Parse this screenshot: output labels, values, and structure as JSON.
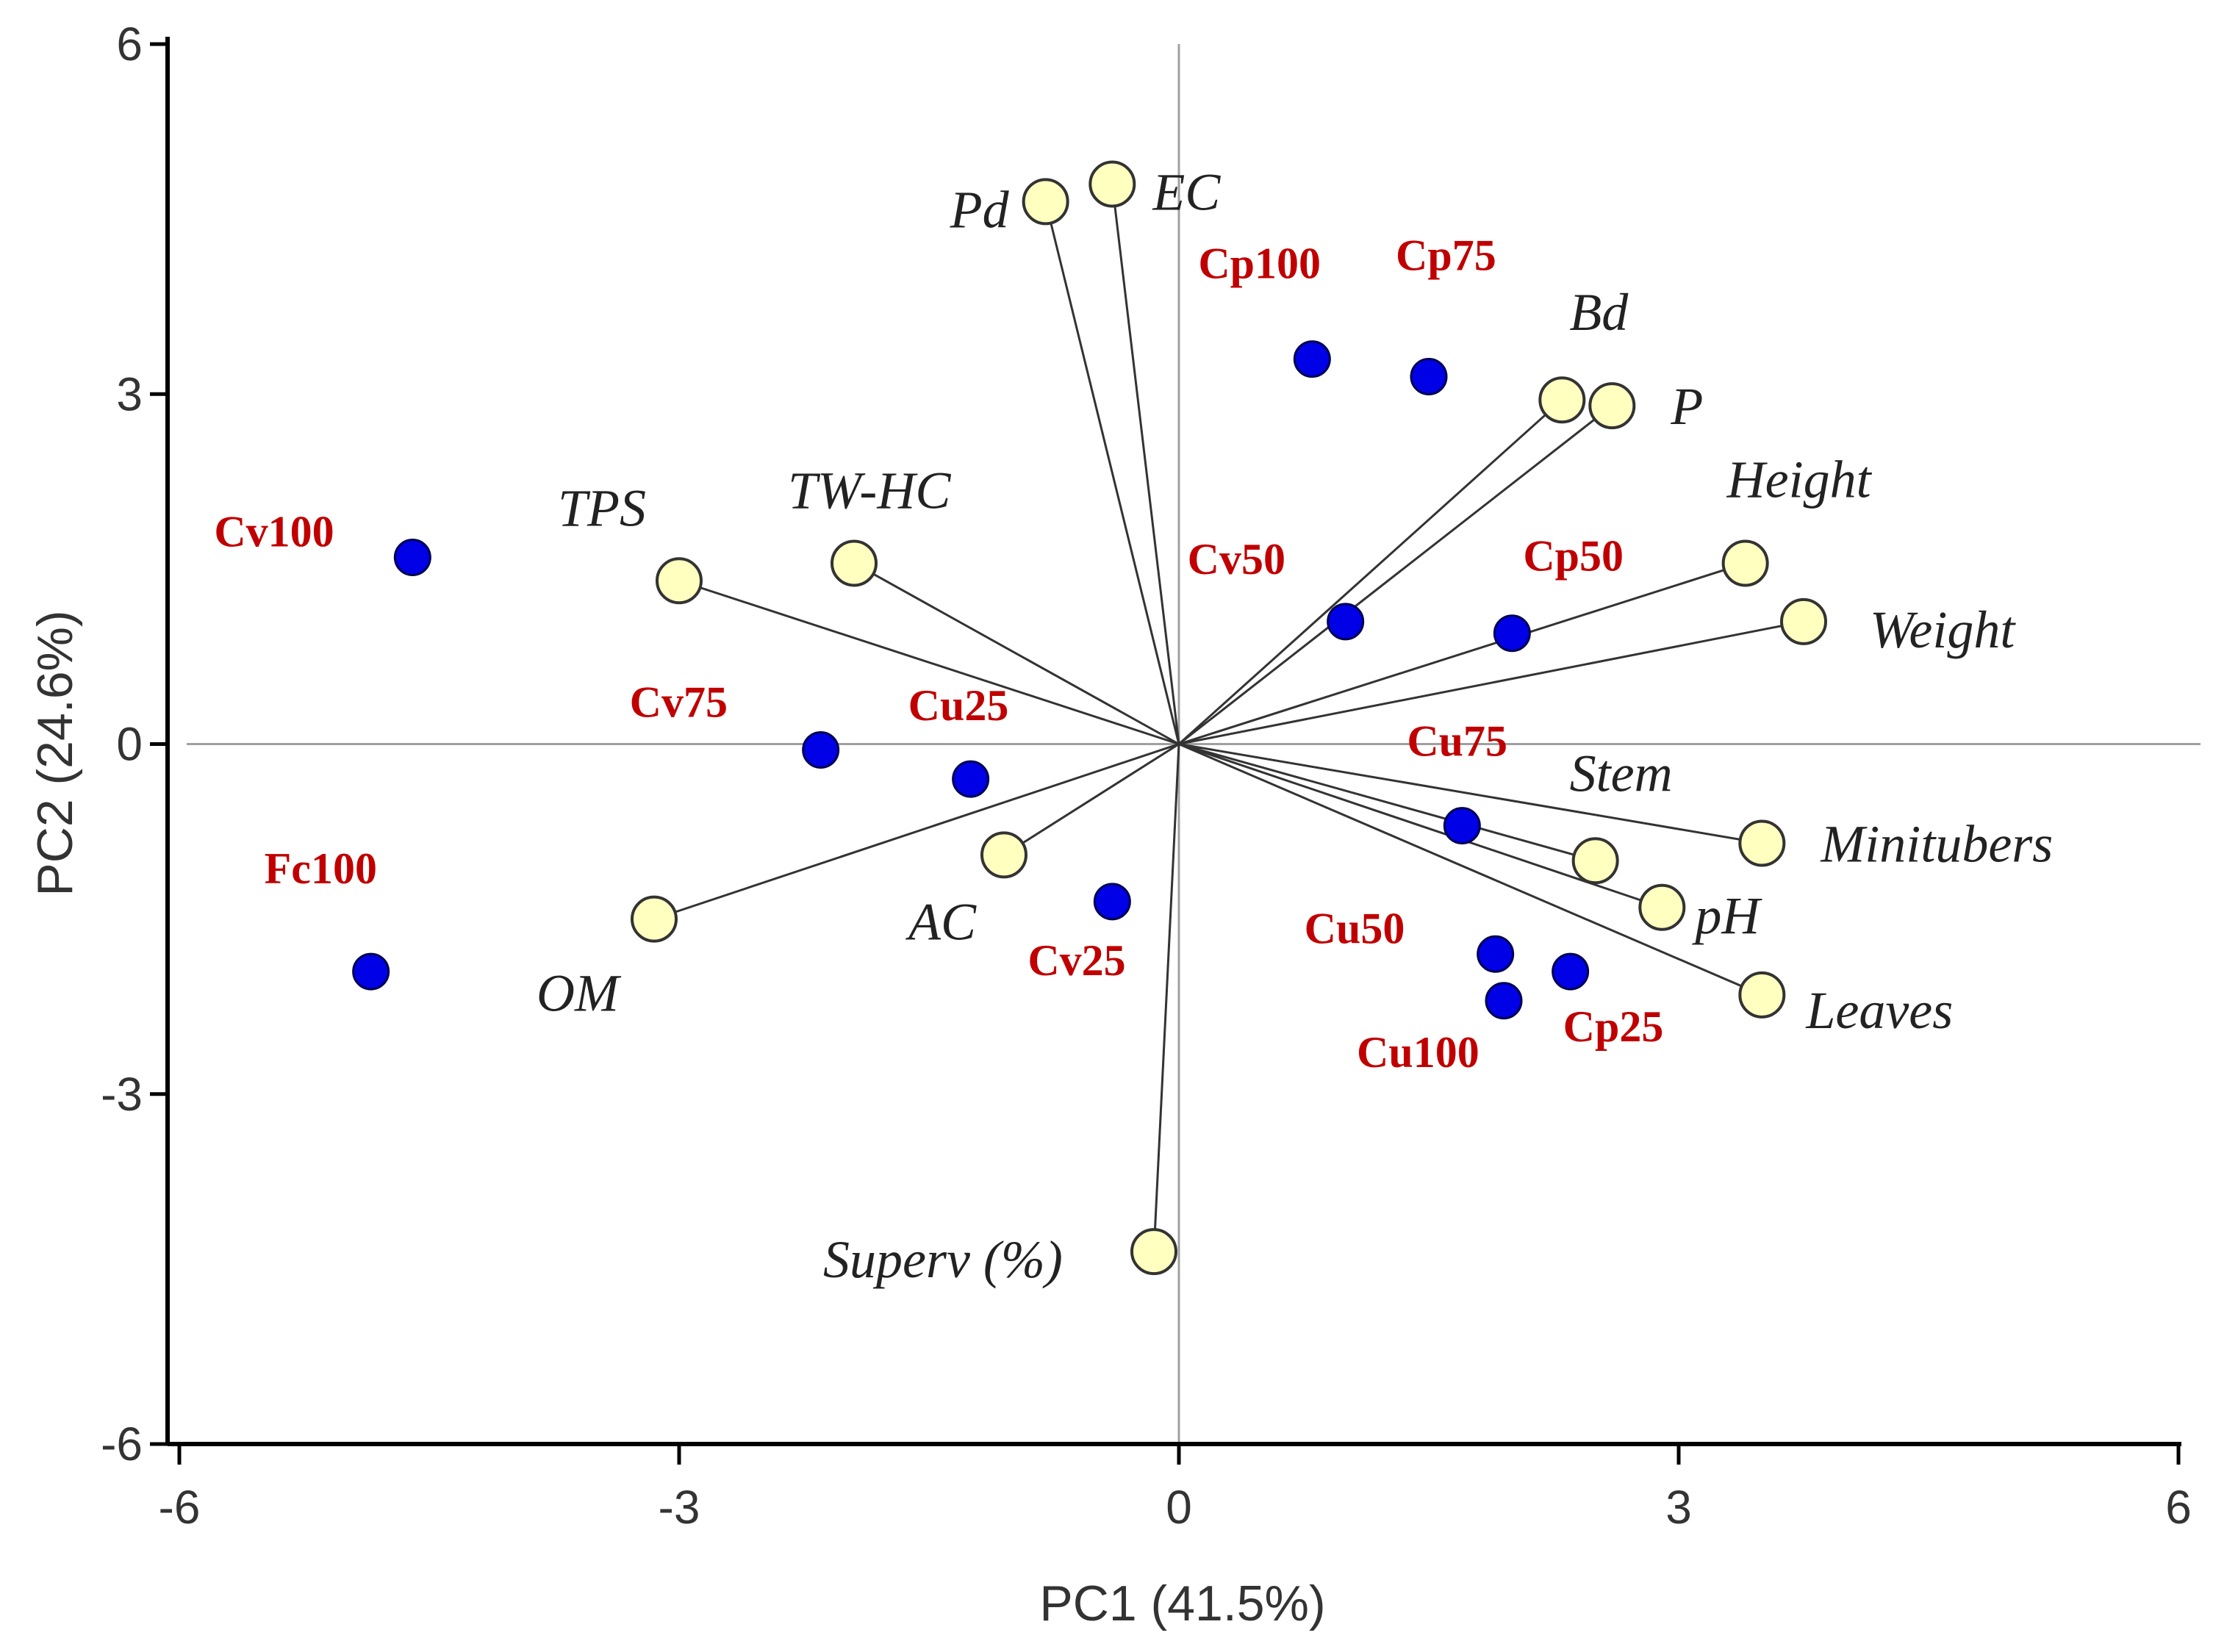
{
  "chart_data": {
    "type": "scatter",
    "subtype": "biplot",
    "title": "",
    "xlabel": "PC1 (41.5%)",
    "ylabel": "PC2 (24.6%)",
    "xlim": [
      -6,
      6
    ],
    "ylim": [
      -6,
      6
    ],
    "xticks": [
      -6,
      -3,
      0,
      3,
      6
    ],
    "yticks": [
      -6,
      -3,
      0,
      3,
      6
    ],
    "xtick_labels": [
      "-6",
      "-3",
      "0",
      "3",
      "6"
    ],
    "ytick_labels": [
      "-6",
      "-3",
      "0",
      "3",
      "6"
    ],
    "colors": {
      "treatment_fill": "#0000e6",
      "variable_fill": "#ffffc0",
      "vector_line": "#333333",
      "treatment_label": "#c00000",
      "axis": "#000000",
      "origin_lines": "#a0a0a0"
    },
    "variables": [
      {
        "name": "Pd",
        "x": -0.8,
        "y": 4.65
      },
      {
        "name": "EC",
        "x": -0.4,
        "y": 4.8
      },
      {
        "name": "Bd",
        "x": 2.3,
        "y": 2.95
      },
      {
        "name": "P",
        "x": 2.6,
        "y": 2.9
      },
      {
        "name": "Height",
        "x": 3.4,
        "y": 1.55
      },
      {
        "name": "Weight",
        "x": 3.75,
        "y": 1.05
      },
      {
        "name": "TPS",
        "x": -3.0,
        "y": 1.4
      },
      {
        "name": "TW-HC",
        "x": -1.95,
        "y": 1.55
      },
      {
        "name": "Stem",
        "x": 2.5,
        "y": -1.0
      },
      {
        "name": "Minitubers",
        "x": 3.5,
        "y": -0.85
      },
      {
        "name": "pH",
        "x": 2.9,
        "y": -1.4
      },
      {
        "name": "Leaves",
        "x": 3.5,
        "y": -2.15
      },
      {
        "name": "AC",
        "x": -1.05,
        "y": -0.95
      },
      {
        "name": "OM",
        "x": -3.15,
        "y": -1.5
      },
      {
        "name": "Superv (%)",
        "x": -0.15,
        "y": -4.35
      }
    ],
    "treatments": [
      {
        "name": "Cp100",
        "x": 0.8,
        "y": 3.3
      },
      {
        "name": "Cp75",
        "x": 1.5,
        "y": 3.15
      },
      {
        "name": "Cv50",
        "x": 1.0,
        "y": 1.05
      },
      {
        "name": "Cp50",
        "x": 2.0,
        "y": 0.95
      },
      {
        "name": "Cv100",
        "x": -4.6,
        "y": 1.6
      },
      {
        "name": "Cv75",
        "x": -2.15,
        "y": -0.05
      },
      {
        "name": "Cu25",
        "x": -1.25,
        "y": -0.3
      },
      {
        "name": "Cv25",
        "x": -0.4,
        "y": -1.35
      },
      {
        "name": "Fc100",
        "x": -4.85,
        "y": -1.95
      },
      {
        "name": "Cu75",
        "x": 1.7,
        "y": -0.7
      },
      {
        "name": "Cu50",
        "x": 1.9,
        "y": -1.8
      },
      {
        "name": "Cu100",
        "x": 1.95,
        "y": -2.2
      },
      {
        "name": "Cp25",
        "x": 2.35,
        "y": -1.95
      }
    ]
  }
}
